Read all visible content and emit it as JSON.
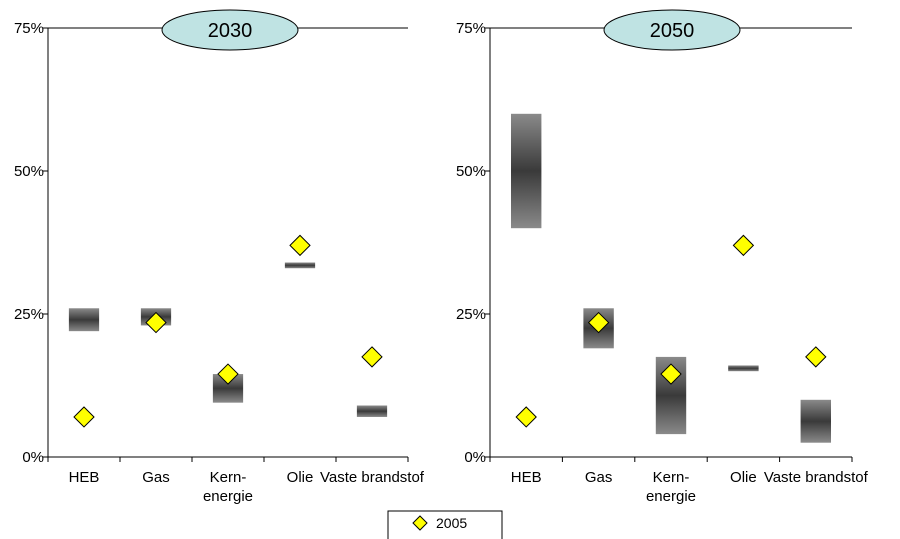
{
  "chart_data": [
    {
      "type": "range-bar",
      "title": "2030",
      "categories": [
        {
          "lines": [
            "HEB"
          ]
        },
        {
          "lines": [
            "Gas"
          ]
        },
        {
          "lines": [
            "Kern-",
            "energie"
          ]
        },
        {
          "lines": [
            "Olie"
          ]
        },
        {
          "lines": [
            "Vaste brandstof"
          ]
        }
      ],
      "ranges": [
        [
          22,
          26
        ],
        [
          23,
          26
        ],
        [
          9.5,
          14.5
        ],
        [
          33,
          34
        ],
        [
          7,
          9
        ]
      ],
      "series": [
        {
          "name": "2005",
          "values": [
            7,
            23.5,
            14.5,
            37,
            17.5
          ]
        }
      ],
      "ylim": [
        0,
        75
      ],
      "yticks": [
        "0%",
        "25%",
        "50%",
        "75%"
      ],
      "ytick_values": [
        0,
        25,
        50,
        75
      ]
    },
    {
      "type": "range-bar",
      "title": "2050",
      "categories": [
        {
          "lines": [
            "HEB"
          ]
        },
        {
          "lines": [
            "Gas"
          ]
        },
        {
          "lines": [
            "Kern-",
            "energie"
          ]
        },
        {
          "lines": [
            "Olie"
          ]
        },
        {
          "lines": [
            "Vaste brandstof"
          ]
        }
      ],
      "ranges": [
        [
          40,
          60
        ],
        [
          19,
          26
        ],
        [
          4,
          17.5
        ],
        [
          15,
          16
        ],
        [
          2.5,
          10
        ]
      ],
      "series": [
        {
          "name": "2005",
          "values": [
            7,
            23.5,
            14.5,
            37,
            17.5
          ]
        }
      ],
      "ylim": [
        0,
        75
      ],
      "yticks": [
        "0%",
        "25%",
        "50%",
        "75%"
      ],
      "ytick_values": [
        0,
        25,
        50,
        75
      ]
    }
  ],
  "legend": {
    "label": "2005",
    "marker_color": "#ffff00",
    "placement": "bottom-center"
  },
  "colors": {
    "marker_fill": "#ffff00",
    "badge_fill": "#bfe3e3",
    "bar_dark": "#3a3a3a",
    "bar_light": "#8a8a8a"
  }
}
